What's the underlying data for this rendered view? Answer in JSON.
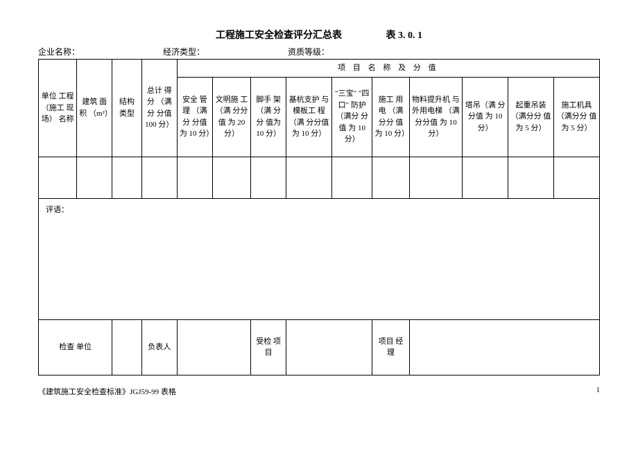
{
  "title": {
    "main": "工程施工安全检查评分汇总表",
    "code": "表 3. 0. 1"
  },
  "meta": {
    "company_label": "企业名称：",
    "econ_label": "经济类型：",
    "qual_label": "资质等级："
  },
  "table": {
    "group_header": "项 目 名 称 及 分 值",
    "cols": {
      "unit_project": "单位\n工程\n（施工\n现场）\n名称",
      "area": "建筑\n面积\n（m²）",
      "struct_type": "结构\n类型",
      "total_score": "总计\n得分\n（满分\n分值\n100\n分）",
      "safety_mgmt": "安全\n管理\n（满分\n分值\n为 10\n分）",
      "civil_const": "文明施\n工（满\n分分值\n为 20\n分）",
      "scaffold": "脚手\n架（满\n分分\n值为\n10 分）",
      "foundation": "基杭支护\n与模板工\n程（满\n分分值为\n10 分）",
      "three_four": "\"三宝\"\n\"四口\"\n防护\n（满分\n分值\n为 10 分）",
      "elec": "施工\n用电\n（满分分\n值\n为 10\n分）",
      "hoist": "物料提升机\n与外用电梯\n（满分分值\n为 10 分）",
      "tower": "塔吊（满\n分分值\n为 10 分）",
      "lifting": "起重吊装\n（满分分\n值为 5 分）",
      "machinery": "施工机具\n（满分分\n值为 5 分）"
    },
    "comment_label": "评语：",
    "sign": {
      "check_unit": "检查\n单位",
      "responsible": "负表人",
      "inspected": "受检\n项目",
      "pm": "项目\n经理"
    }
  },
  "footer": {
    "left": "《建筑施工安全检查标准》JGJ59-99 表格",
    "page": "1"
  },
  "style": {
    "widths": {
      "c1": 52,
      "c2": 48,
      "c3": 40,
      "c4": 48,
      "c5": 48,
      "c6": 52,
      "c7": 48,
      "c8": 62,
      "c9": 55,
      "c10": 50,
      "c11": 72,
      "c12": 62,
      "c13": 62,
      "c14": 62
    }
  }
}
